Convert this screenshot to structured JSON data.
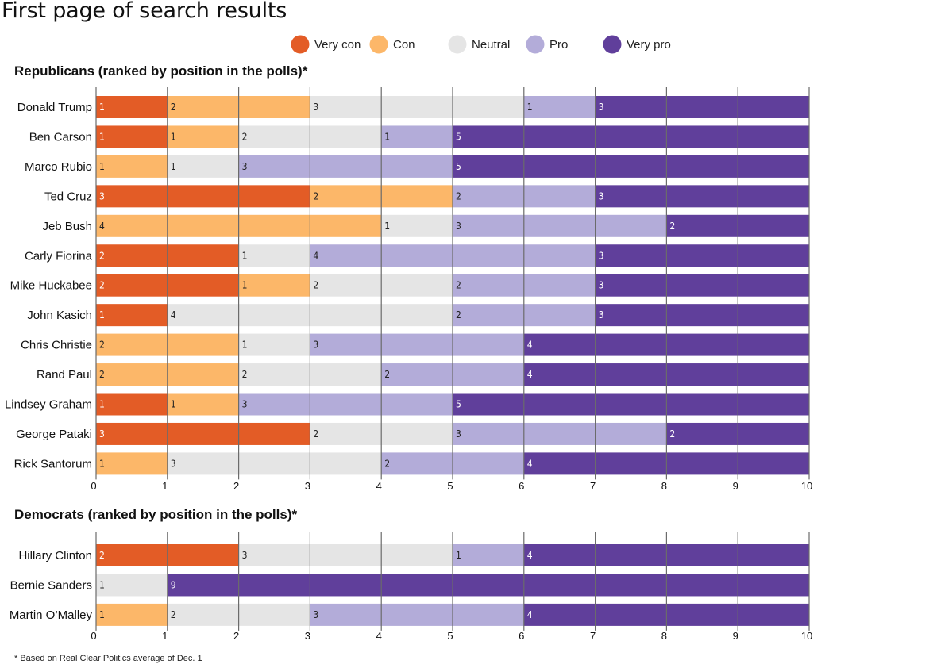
{
  "page": {
    "title": "First page of search results"
  },
  "footnote": "* Based on Real Clear Politics average of Dec. 1",
  "colors": {
    "very_con": "#e35c26",
    "con": "#fcb769",
    "neutral": "#e5e5e5",
    "pro": "#b3acd9",
    "very_pro": "#603f9b"
  },
  "chart_data": {
    "type": "bar",
    "stacked": true,
    "orientation": "horizontal",
    "legend": {
      "placement": "top",
      "entries": [
        {
          "key": "very_con",
          "label": "Very con"
        },
        {
          "key": "con",
          "label": "Con"
        },
        {
          "key": "neutral",
          "label": "Neutral"
        },
        {
          "key": "pro",
          "label": "Pro"
        },
        {
          "key": "very_pro",
          "label": "Very pro"
        }
      ]
    },
    "xlim": [
      0,
      10
    ],
    "xticks": [
      "0",
      "1",
      "2",
      "3",
      "4",
      "5",
      "6",
      "7",
      "8",
      "9",
      "10"
    ],
    "grid": true,
    "panels": [
      {
        "title": "Republicans (ranked by position in the polls)*",
        "series_order": [
          "very_con",
          "con",
          "neutral",
          "pro",
          "very_pro"
        ],
        "rows": [
          {
            "name": "Donald Trump",
            "values": [
              1,
              2,
              3,
              1,
              3
            ]
          },
          {
            "name": "Ben Carson",
            "values": [
              1,
              1,
              2,
              1,
              5
            ]
          },
          {
            "name": "Marco Rubio",
            "values": [
              0,
              1,
              1,
              3,
              5
            ]
          },
          {
            "name": "Ted Cruz",
            "values": [
              3,
              2,
              0,
              2,
              3
            ]
          },
          {
            "name": "Jeb Bush",
            "values": [
              0,
              4,
              1,
              3,
              2
            ]
          },
          {
            "name": "Carly Fiorina",
            "values": [
              2,
              0,
              1,
              4,
              3
            ]
          },
          {
            "name": "Mike Huckabee",
            "values": [
              2,
              1,
              2,
              2,
              3
            ]
          },
          {
            "name": "John Kasich",
            "values": [
              1,
              0,
              4,
              2,
              3
            ]
          },
          {
            "name": "Chris Christie",
            "values": [
              0,
              2,
              1,
              3,
              4
            ]
          },
          {
            "name": "Rand Paul",
            "values": [
              0,
              2,
              2,
              2,
              4
            ]
          },
          {
            "name": "Lindsey Graham",
            "values": [
              1,
              1,
              0,
              3,
              5
            ]
          },
          {
            "name": "George Pataki",
            "values": [
              3,
              0,
              2,
              3,
              2
            ]
          },
          {
            "name": "Rick Santorum",
            "values": [
              0,
              1,
              3,
              2,
              4
            ]
          }
        ]
      },
      {
        "title": "Democrats (ranked by position in the polls)*",
        "series_order": [
          "very_con",
          "con",
          "neutral",
          "pro",
          "very_pro"
        ],
        "rows": [
          {
            "name": "Hillary Clinton",
            "values": [
              2,
              0,
              3,
              1,
              4
            ]
          },
          {
            "name": "Bernie Sanders",
            "values": [
              0,
              0,
              1,
              0,
              9
            ]
          },
          {
            "name": "Martin O’Malley",
            "values": [
              0,
              1,
              2,
              3,
              4
            ]
          }
        ]
      }
    ]
  }
}
